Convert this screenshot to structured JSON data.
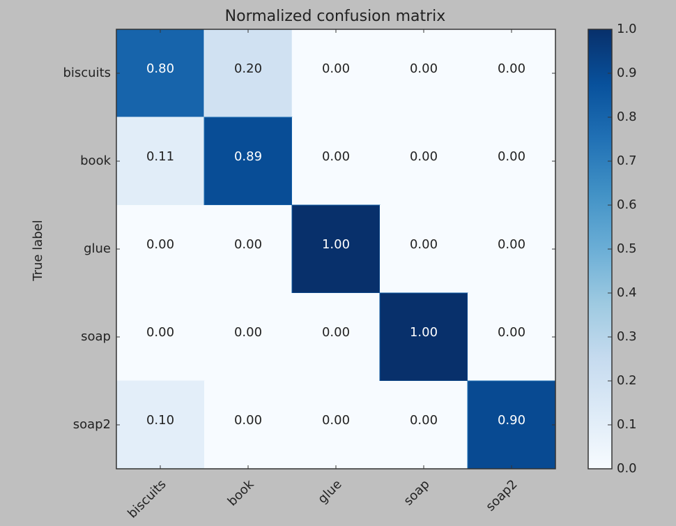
{
  "chart_data": {
    "type": "heatmap",
    "title": "Normalized confusion matrix",
    "ylabel": "True label",
    "xlabel": "",
    "x_labels": [
      "biscuits",
      "book",
      "glue",
      "soap",
      "soap2"
    ],
    "y_labels": [
      "biscuits",
      "book",
      "glue",
      "soap",
      "soap2"
    ],
    "values": [
      [
        0.8,
        0.2,
        0.0,
        0.0,
        0.0
      ],
      [
        0.11,
        0.89,
        0.0,
        0.0,
        0.0
      ],
      [
        0.0,
        0.0,
        1.0,
        0.0,
        0.0
      ],
      [
        0.0,
        0.0,
        0.0,
        1.0,
        0.0
      ],
      [
        0.1,
        0.0,
        0.0,
        0.0,
        0.9
      ]
    ],
    "cell_labels": [
      [
        "0.80",
        "0.20",
        "0.00",
        "0.00",
        "0.00"
      ],
      [
        "0.11",
        "0.89",
        "0.00",
        "0.00",
        "0.00"
      ],
      [
        "0.00",
        "0.00",
        "1.00",
        "0.00",
        "0.00"
      ],
      [
        "0.00",
        "0.00",
        "0.00",
        "1.00",
        "0.00"
      ],
      [
        "0.10",
        "0.00",
        "0.00",
        "0.00",
        "0.90"
      ]
    ],
    "colormap": "Blues",
    "vmin": 0.0,
    "vmax": 1.0,
    "colorbar_ticks": [
      "0.0",
      "0.1",
      "0.2",
      "0.3",
      "0.4",
      "0.5",
      "0.6",
      "0.7",
      "0.8",
      "0.9",
      "1.0"
    ],
    "colors": {
      "background": "#bfbfbf",
      "text": "#222222",
      "light_text": "#ffffff"
    }
  }
}
